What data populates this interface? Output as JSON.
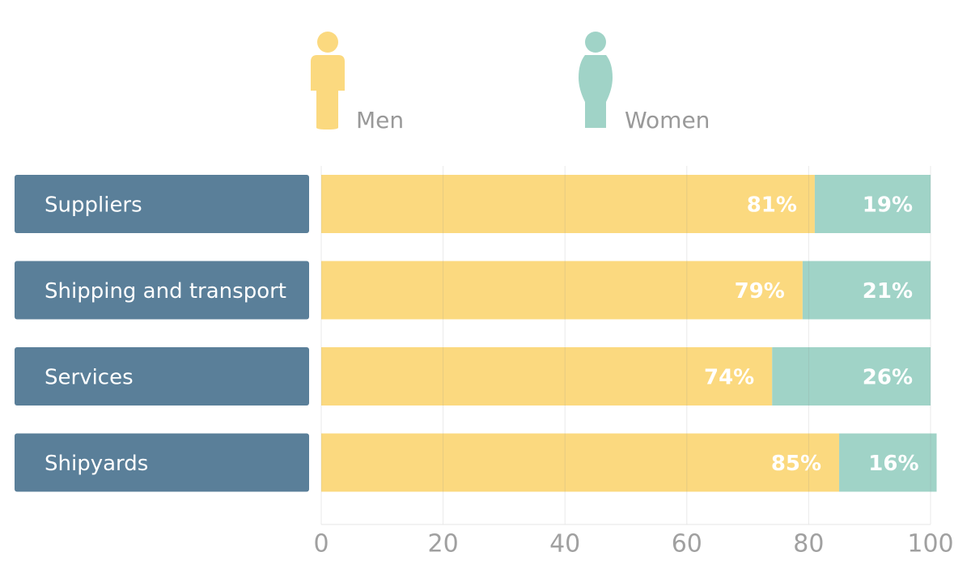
{
  "chart_data": {
    "type": "stacked-barh",
    "categories": [
      "Suppliers",
      "Shipping and transport",
      "Services",
      "Shipyards"
    ],
    "series": [
      {
        "name": "Men",
        "color": "#fbd97f",
        "values": [
          81,
          79,
          74,
          85
        ],
        "value_labels": [
          "81%",
          "79%",
          "74%",
          "85%"
        ]
      },
      {
        "name": "Women",
        "color": "#a0d3c7",
        "values": [
          19,
          21,
          26,
          16
        ],
        "value_labels": [
          "19%",
          "21%",
          "26%",
          "16%"
        ]
      }
    ],
    "category_box_color": "#5a7f99",
    "xlim": [
      0,
      100
    ],
    "xticks": [
      0,
      20,
      40,
      60,
      80,
      100
    ],
    "grid": true
  }
}
